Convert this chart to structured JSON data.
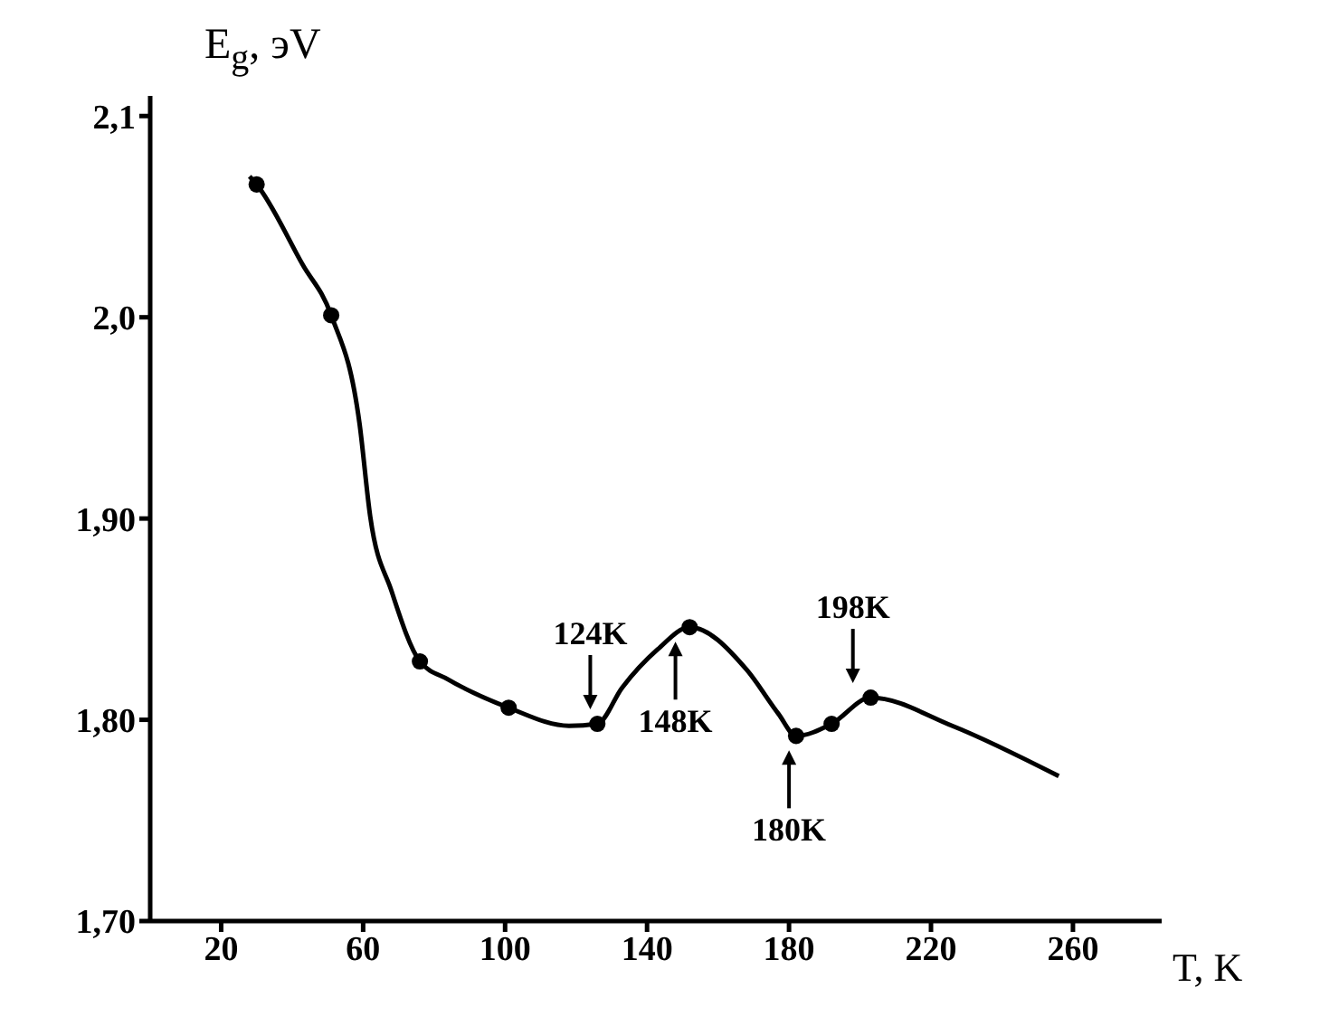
{
  "chart_data": {
    "type": "line",
    "xlabel": "T, K",
    "ylabel": "E$_{g}$, эV",
    "xlim": [
      0,
      285
    ],
    "xticks": [
      20,
      60,
      100,
      140,
      180,
      220,
      260
    ],
    "ylim": [
      1.7,
      2.11
    ],
    "yticks": [
      {
        "value": 1.7,
        "label": "1,70"
      },
      {
        "value": 1.8,
        "label": "1,80"
      },
      {
        "value": 1.9,
        "label": "1,90"
      },
      {
        "value": 2.0,
        "label": "2,0"
      },
      {
        "value": 2.1,
        "label": "2,1"
      }
    ],
    "series": [
      {
        "marker": "none",
        "color": "#000000",
        "x": [
          28,
          30,
          43,
          51,
          59,
          62,
          68,
          76,
          84,
          101,
          118,
          126,
          133,
          143,
          152,
          168,
          177,
          182,
          192,
          203,
          226,
          256
        ],
        "values": [
          2.07,
          2.066,
          2.026,
          2.001,
          1.947,
          1.901,
          1.864,
          1.829,
          1.82,
          1.806,
          1.797,
          1.798,
          1.816,
          1.835,
          1.846,
          1.825,
          1.803,
          1.792,
          1.798,
          1.811,
          1.797,
          1.772
        ]
      },
      {
        "type": "scatter",
        "marker": "circle",
        "color": "#000000",
        "x": [
          30,
          51,
          76,
          101,
          126,
          152,
          182,
          192,
          203
        ],
        "values": [
          2.066,
          2.001,
          1.829,
          1.806,
          1.798,
          1.846,
          1.792,
          1.798,
          1.811
        ]
      }
    ],
    "annotations": [
      {
        "text": "124K",
        "x": 124,
        "y": 1.798
      },
      {
        "text": "148K",
        "x": 148,
        "y": 1.846
      },
      {
        "text": "180K",
        "x": 180,
        "y": 1.792
      },
      {
        "text": "198K",
        "x": 198,
        "y": 1.811
      }
    ]
  }
}
